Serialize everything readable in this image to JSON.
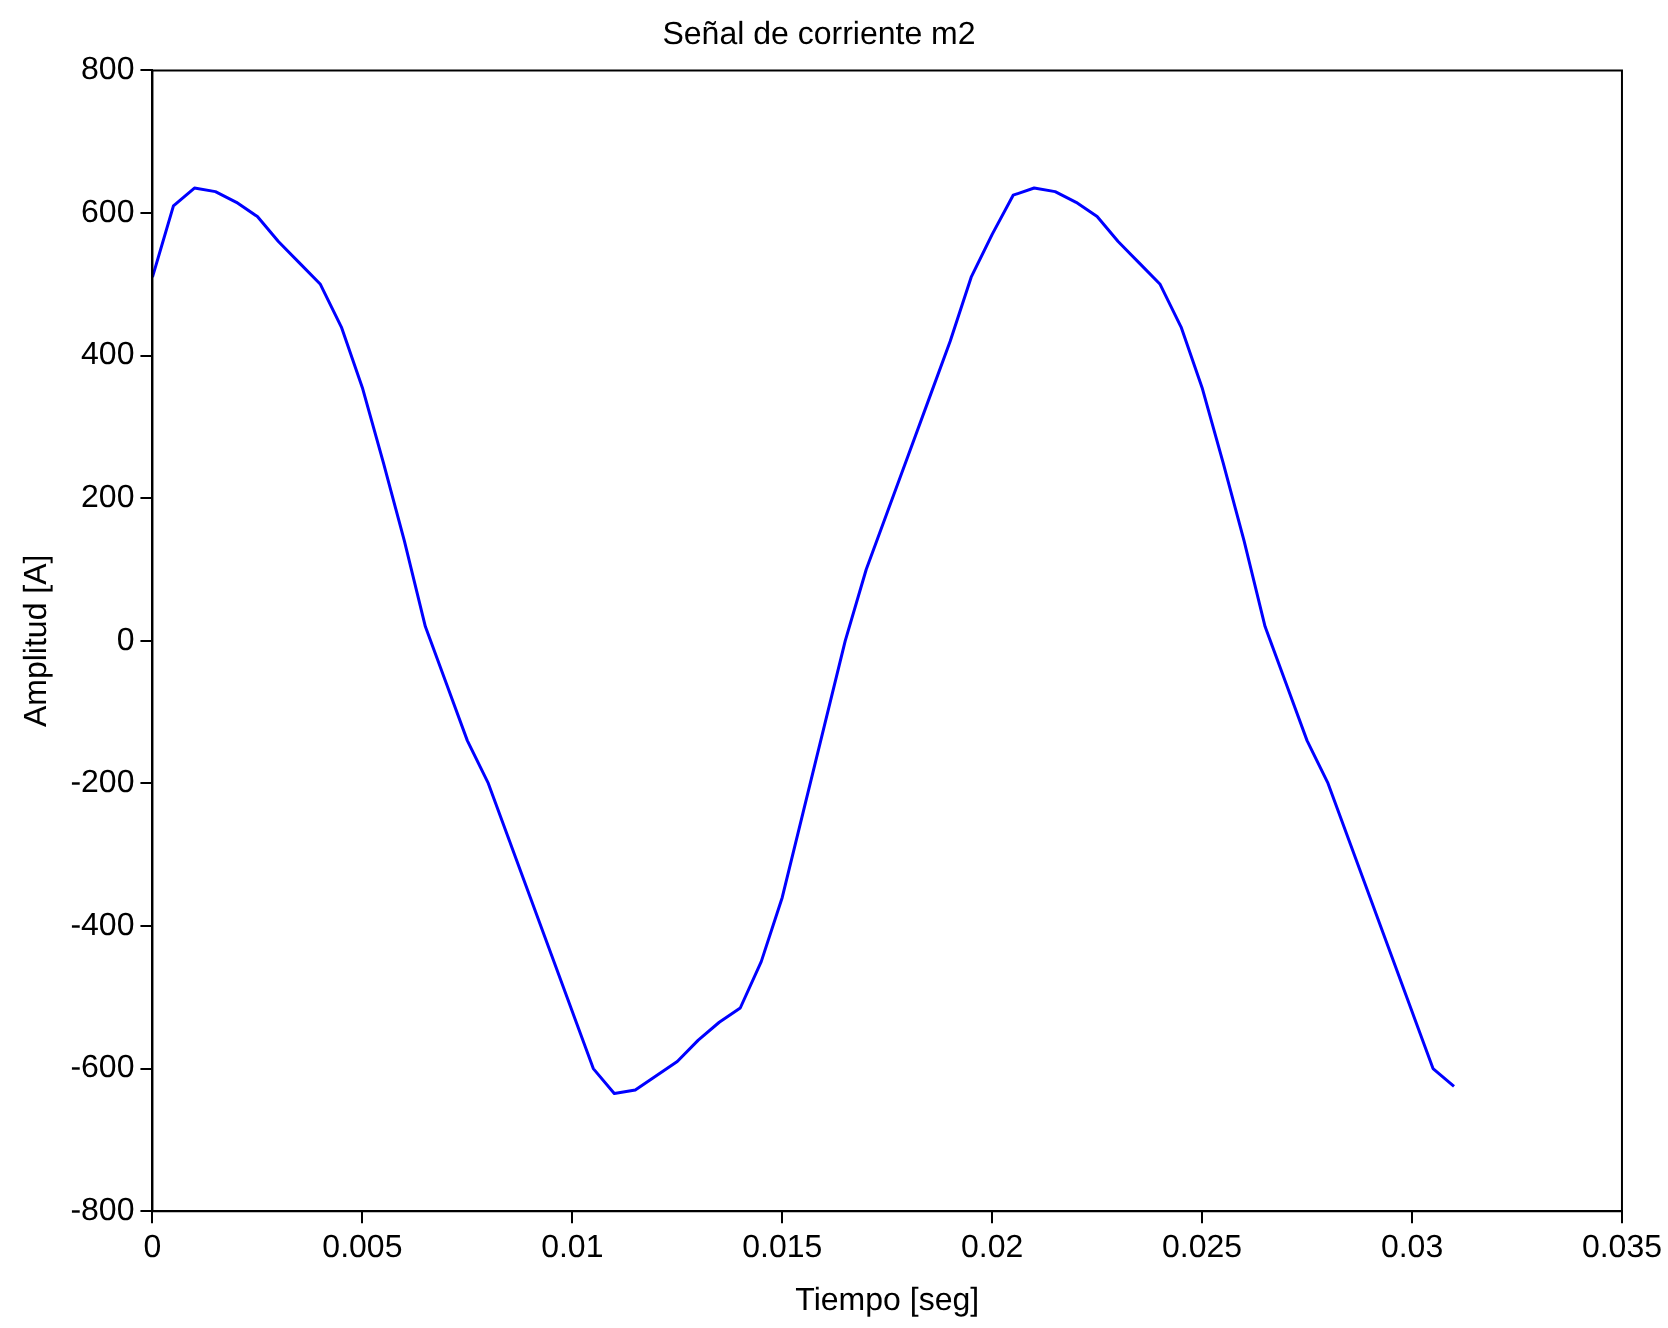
{
  "chart_data": {
    "type": "line",
    "title": "Señal de corriente m2",
    "xlabel": "Tiempo [seg]",
    "ylabel": "Amplitud [A]",
    "series": [
      {
        "color": "#0000ff",
        "x": [
          0,
          0.0005,
          0.001,
          0.0015,
          0.002,
          0.0025,
          0.003,
          0.0035,
          0.004,
          0.0045,
          0.005,
          0.0055,
          0.006,
          0.0065,
          0.007,
          0.0075,
          0.008,
          0.0085,
          0.009,
          0.0095,
          0.01,
          0.0105,
          0.011,
          0.0115,
          0.012,
          0.0125,
          0.013,
          0.0135,
          0.014,
          0.0145,
          0.015,
          0.0155,
          0.016,
          0.0165,
          0.017,
          0.0175,
          0.018,
          0.0185,
          0.019,
          0.0195,
          0.02,
          0.0205,
          0.021,
          0.0215,
          0.022,
          0.0225,
          0.023,
          0.0235,
          0.024,
          0.0245,
          0.025,
          0.0255,
          0.026,
          0.0265,
          0.027,
          0.0275,
          0.028,
          0.0285,
          0.029,
          0.0295,
          0.03,
          0.0305,
          0.031
        ],
        "values": [
          510,
          610,
          635,
          630,
          615,
          595,
          560,
          530,
          500,
          440,
          355,
          250,
          140,
          20,
          -60,
          -140,
          -200,
          -280,
          -360,
          -440,
          -520,
          -600,
          -635,
          -630,
          -610,
          -590,
          -560,
          -535,
          -515,
          -450,
          -360,
          -240,
          -120,
          0,
          100,
          180,
          260,
          340,
          420,
          510,
          570,
          625,
          635,
          630,
          615,
          595,
          560,
          530,
          500,
          440,
          355,
          250,
          140,
          20,
          -60,
          -140,
          -200,
          -280,
          -360,
          -440,
          -520,
          -600,
          -625
        ]
      }
    ],
    "xlim": [
      0,
      0.035
    ],
    "xticks": [
      0,
      0.005,
      0.01,
      0.015,
      0.02,
      0.025,
      0.03,
      0.035
    ],
    "ylim": [
      -800,
      800
    ],
    "yticks": [
      -800,
      -600,
      -400,
      -200,
      0,
      200,
      400,
      600,
      800
    ],
    "grid": false,
    "legend": false,
    "marker": "none",
    "line_style": "solid"
  }
}
